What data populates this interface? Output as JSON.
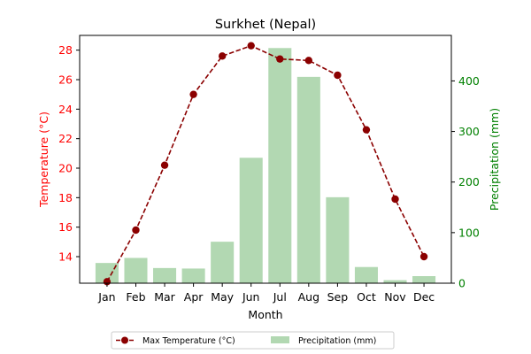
{
  "chart_data": {
    "type": "bar+line",
    "title": "Surkhet (Nepal)",
    "xlabel": "Month",
    "ylabel_left": "Temperature (°C)",
    "ylabel_right": "Precipitation (mm)",
    "categories": [
      "Jan",
      "Feb",
      "Mar",
      "Apr",
      "May",
      "Jun",
      "Jul",
      "Aug",
      "Sep",
      "Oct",
      "Nov",
      "Dec"
    ],
    "temperature": {
      "name": "Max Temperature (°C)",
      "color": "#8b0000",
      "values": [
        12.3,
        15.8,
        20.2,
        25.0,
        27.6,
        28.3,
        27.4,
        27.3,
        26.3,
        22.6,
        17.9,
        14.0
      ],
      "ylim": [
        12.2,
        29.0
      ],
      "ticks": [
        14,
        16,
        18,
        20,
        22,
        24,
        26,
        28
      ]
    },
    "precipitation": {
      "name": "Precipitation (mm)",
      "color": "#b2d8b2",
      "values": [
        40,
        50,
        30,
        29,
        82,
        248,
        465,
        408,
        170,
        32,
        6,
        14
      ],
      "ylim": [
        0,
        490
      ],
      "ticks": [
        0,
        100,
        200,
        300,
        400
      ]
    },
    "legend_position": "bottom-center",
    "left_axis_color": "#ff0000",
    "right_axis_color": "#008000",
    "grid": false
  }
}
